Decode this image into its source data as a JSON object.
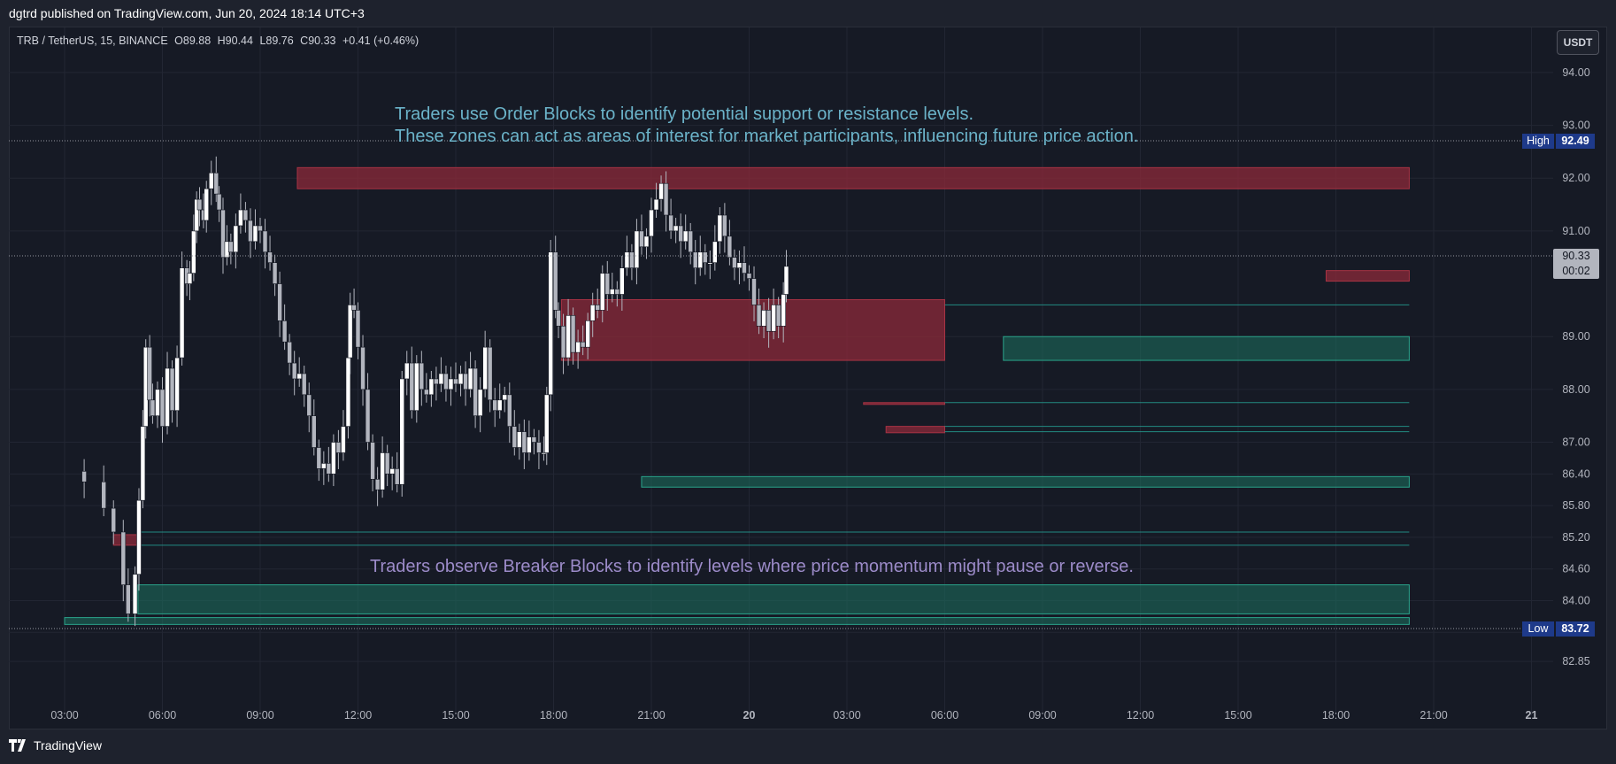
{
  "header": {
    "published_by": "dgtrd published on TradingView.com, Jun 20, 2024 18:14 UTC+3"
  },
  "symbol": {
    "title": "TRB / TetherUS, 15, BINANCE",
    "open": "O89.88",
    "high": "H90.44",
    "low": "L89.76",
    "close": "C90.33",
    "change": "+0.41 (+0.46%)"
  },
  "toolbar": {
    "currency": "USDT"
  },
  "annotations": {
    "order_blocks_line1": "Traders use Order Blocks to identify potential support or resistance levels.",
    "order_blocks_line2": "These zones can act as areas of interest for market participants, influencing future price action.",
    "breaker_blocks": "Traders observe Breaker Blocks to identify levels where price momentum might pause or reverse."
  },
  "price_labels": {
    "high_label": "High",
    "high_value": "92.49",
    "low_label": "Low",
    "low_value": "83.72",
    "current_value": "90.33",
    "countdown": "00:02"
  },
  "footer": {
    "brand": "TradingView"
  },
  "colors": {
    "background": "#161a25",
    "bear_block": "#8c2a3a",
    "bull_block": "#1d6b5c",
    "candle_bull": "#ffffff",
    "candle_bear": "#b2b5be",
    "label_blue": "#1e3a8a",
    "order_text": "#6bb3c9",
    "breaker_text": "#9c8bc9"
  },
  "chart_data": {
    "type": "candlestick",
    "y_axis_ticks": [
      "94.00",
      "93.00",
      "92.00",
      "91.00",
      "89.00",
      "88.00",
      "87.00",
      "86.40",
      "85.80",
      "85.20",
      "84.60",
      "84.00",
      "83.40",
      "82.85"
    ],
    "x_axis_ticks": [
      "03:00",
      "06:00",
      "09:00",
      "12:00",
      "15:00",
      "18:00",
      "21:00",
      "20",
      "03:00",
      "06:00",
      "09:00",
      "12:00",
      "15:00",
      "18:00",
      "21:00",
      "21"
    ],
    "ylim": [
      82.5,
      94.2
    ],
    "high": 92.49,
    "low": 83.72,
    "last": 90.33,
    "close_path": [
      [
        0.0,
        86.45
      ],
      [
        0.2,
        86.25
      ],
      [
        0.4,
        85.75
      ],
      [
        0.5,
        85.3
      ],
      [
        0.6,
        84.3
      ],
      [
        0.65,
        83.75
      ],
      [
        0.72,
        84.5
      ],
      [
        0.76,
        85.9
      ],
      [
        0.8,
        87.3
      ],
      [
        0.83,
        88.8
      ],
      [
        0.87,
        87.8
      ],
      [
        0.9,
        87.5
      ],
      [
        0.95,
        88.0
      ],
      [
        1.0,
        87.3
      ],
      [
        1.05,
        88.4
      ],
      [
        1.1,
        87.6
      ],
      [
        1.15,
        88.6
      ],
      [
        1.2,
        90.3
      ],
      [
        1.25,
        90.0
      ],
      [
        1.28,
        90.2
      ],
      [
        1.32,
        91.0
      ],
      [
        1.35,
        91.6
      ],
      [
        1.38,
        91.4
      ],
      [
        1.42,
        91.2
      ],
      [
        1.45,
        91.8
      ],
      [
        1.5,
        92.1
      ],
      [
        1.55,
        91.7
      ],
      [
        1.58,
        91.4
      ],
      [
        1.62,
        90.5
      ],
      [
        1.66,
        90.8
      ],
      [
        1.7,
        90.6
      ],
      [
        1.75,
        91.1
      ],
      [
        1.8,
        91.4
      ],
      [
        1.85,
        91.2
      ],
      [
        1.9,
        90.8
      ],
      [
        1.95,
        91.1
      ],
      [
        2.0,
        91.0
      ],
      [
        2.05,
        90.6
      ],
      [
        2.1,
        90.4
      ],
      [
        2.15,
        90.0
      ],
      [
        2.2,
        89.3
      ],
      [
        2.25,
        88.9
      ],
      [
        2.3,
        88.5
      ],
      [
        2.35,
        88.2
      ],
      [
        2.4,
        88.3
      ],
      [
        2.45,
        87.9
      ],
      [
        2.5,
        87.5
      ],
      [
        2.55,
        86.9
      ],
      [
        2.6,
        86.5
      ],
      [
        2.65,
        86.6
      ],
      [
        2.7,
        86.4
      ],
      [
        2.75,
        87.0
      ],
      [
        2.8,
        86.8
      ],
      [
        2.85,
        87.3
      ],
      [
        2.9,
        88.6
      ],
      [
        2.92,
        89.6
      ],
      [
        2.96,
        89.5
      ],
      [
        3.0,
        88.8
      ],
      [
        3.05,
        88.0
      ],
      [
        3.1,
        87.0
      ],
      [
        3.15,
        86.3
      ],
      [
        3.2,
        86.1
      ],
      [
        3.25,
        86.8
      ],
      [
        3.3,
        86.4
      ],
      [
        3.35,
        86.5
      ],
      [
        3.4,
        86.2
      ],
      [
        3.45,
        88.2
      ],
      [
        3.5,
        88.5
      ],
      [
        3.55,
        87.6
      ],
      [
        3.6,
        88.5
      ],
      [
        3.65,
        88.0
      ],
      [
        3.7,
        87.9
      ],
      [
        3.75,
        88.2
      ],
      [
        3.8,
        88.1
      ],
      [
        3.85,
        88.3
      ],
      [
        3.9,
        88.0
      ],
      [
        3.95,
        88.2
      ],
      [
        4.0,
        88.1
      ],
      [
        4.05,
        88.3
      ],
      [
        4.1,
        88.0
      ],
      [
        4.15,
        88.4
      ],
      [
        4.2,
        87.5
      ],
      [
        4.25,
        88.0
      ],
      [
        4.3,
        88.8
      ],
      [
        4.35,
        87.8
      ],
      [
        4.4,
        87.6
      ],
      [
        4.45,
        87.8
      ],
      [
        4.5,
        87.9
      ],
      [
        4.55,
        87.3
      ],
      [
        4.6,
        86.9
      ],
      [
        4.65,
        87.2
      ],
      [
        4.7,
        86.8
      ],
      [
        4.75,
        87.1
      ],
      [
        4.8,
        87.0
      ],
      [
        4.85,
        86.8
      ],
      [
        4.9,
        86.8
      ],
      [
        4.93,
        87.9
      ],
      [
        4.97,
        90.6
      ],
      [
        5.02,
        89.5
      ],
      [
        5.05,
        89.2
      ],
      [
        5.1,
        88.6
      ],
      [
        5.15,
        89.4
      ],
      [
        5.2,
        88.7
      ],
      [
        5.25,
        88.9
      ],
      [
        5.3,
        88.8
      ],
      [
        5.35,
        89.3
      ],
      [
        5.4,
        89.6
      ],
      [
        5.45,
        89.5
      ],
      [
        5.5,
        90.2
      ],
      [
        5.55,
        89.8
      ],
      [
        5.6,
        89.9
      ],
      [
        5.65,
        89.8
      ],
      [
        5.7,
        90.3
      ],
      [
        5.75,
        90.6
      ],
      [
        5.8,
        90.3
      ],
      [
        5.85,
        91.0
      ],
      [
        5.9,
        90.7
      ],
      [
        5.95,
        90.9
      ],
      [
        6.0,
        91.4
      ],
      [
        6.05,
        91.6
      ],
      [
        6.1,
        91.9
      ],
      [
        6.15,
        91.3
      ],
      [
        6.2,
        91.0
      ],
      [
        6.25,
        91.1
      ],
      [
        6.3,
        90.8
      ],
      [
        6.35,
        91.0
      ],
      [
        6.4,
        90.6
      ],
      [
        6.45,
        90.3
      ],
      [
        6.5,
        90.6
      ],
      [
        6.55,
        90.4
      ],
      [
        6.6,
        90.4
      ],
      [
        6.65,
        90.8
      ],
      [
        6.7,
        91.3
      ],
      [
        6.75,
        90.9
      ],
      [
        6.8,
        90.5
      ],
      [
        6.85,
        90.3
      ],
      [
        6.9,
        90.4
      ],
      [
        6.95,
        90.2
      ],
      [
        7.0,
        90.1
      ],
      [
        7.05,
        89.6
      ],
      [
        7.1,
        89.2
      ],
      [
        7.15,
        89.5
      ],
      [
        7.2,
        89.1
      ],
      [
        7.25,
        89.6
      ],
      [
        7.3,
        89.2
      ],
      [
        7.35,
        89.8
      ],
      [
        7.38,
        90.33
      ]
    ],
    "order_blocks_bearish": [
      {
        "from": 2.38,
        "to": 13.75,
        "top": 92.2,
        "bottom": 91.8
      },
      {
        "from": 5.08,
        "to": 9.0,
        "top": 89.7,
        "bottom": 88.55
      },
      {
        "from": 0.5,
        "to": 0.78,
        "top": 85.25,
        "bottom": 85.05
      },
      {
        "from": 12.9,
        "to": 13.75,
        "top": 90.25,
        "bottom": 90.05
      },
      {
        "from": 8.17,
        "to": 9.0,
        "top": 87.75,
        "bottom": 87.72
      },
      {
        "from": 8.4,
        "to": 9.0,
        "top": 87.3,
        "bottom": 87.18
      }
    ],
    "order_blocks_bullish": [
      {
        "from": 0.75,
        "to": 13.75,
        "top": 84.3,
        "bottom": 83.75
      },
      {
        "from": 5.9,
        "to": 13.75,
        "top": 86.35,
        "bottom": 86.15
      },
      {
        "from": 9.6,
        "to": 13.75,
        "top": 89.0,
        "bottom": 88.55
      },
      {
        "from": 0,
        "to": 13.75,
        "top": 83.68,
        "bottom": 83.55
      }
    ],
    "breaker_lines": [
      {
        "from": 0.78,
        "to": 13.75,
        "value": 85.3
      },
      {
        "from": 0.78,
        "to": 13.75,
        "value": 85.05
      },
      {
        "from": 9.0,
        "to": 13.75,
        "value": 87.75
      },
      {
        "from": 9.0,
        "to": 13.75,
        "value": 87.3
      },
      {
        "from": 9.0,
        "to": 13.75,
        "value": 87.2
      },
      {
        "from": 9.0,
        "to": 13.75,
        "value": 89.6
      }
    ]
  }
}
